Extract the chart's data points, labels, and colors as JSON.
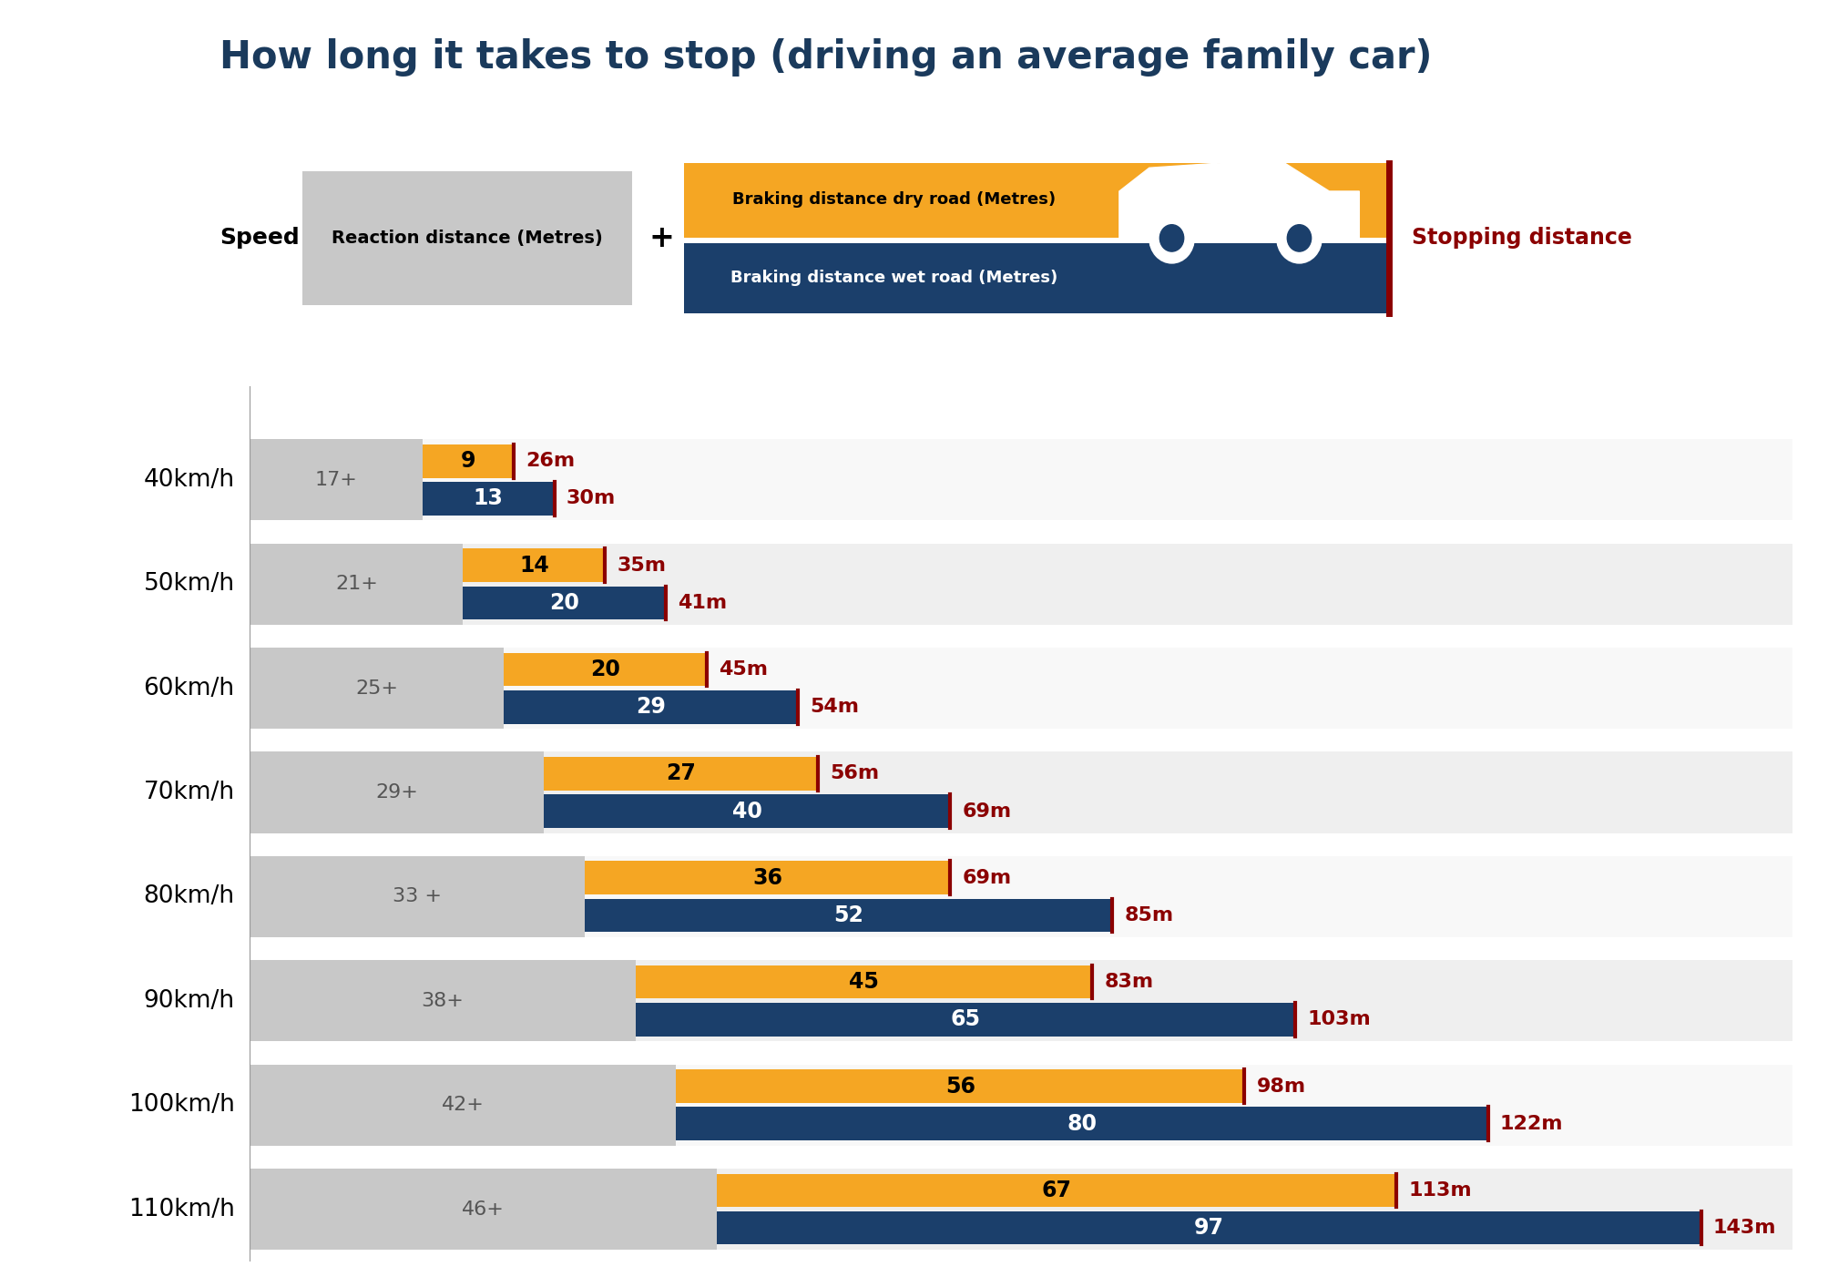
{
  "title": "How long it takes to stop (driving an average family car)",
  "title_color": "#1a3a5c",
  "title_fontsize": 30,
  "speeds": [
    "40km/h",
    "50km/h",
    "60km/h",
    "70km/h",
    "80km/h",
    "90km/h",
    "100km/h",
    "110km/h"
  ],
  "reaction_distances": [
    17,
    21,
    25,
    29,
    33,
    38,
    42,
    46
  ],
  "reaction_labels": [
    "17+",
    "21+",
    "25+",
    "29+",
    "33 +",
    "38+",
    "42+",
    "46+"
  ],
  "braking_dry": [
    9,
    14,
    20,
    27,
    36,
    45,
    56,
    67
  ],
  "braking_wet": [
    13,
    20,
    29,
    40,
    52,
    65,
    80,
    97
  ],
  "stopping_dry": [
    "26m",
    "35m",
    "45m",
    "56m",
    "69m",
    "83m",
    "98m",
    "113m"
  ],
  "stopping_wet": [
    "30m",
    "41m",
    "54m",
    "69m",
    "85m",
    "103m",
    "122m",
    "143m"
  ],
  "color_gray": "#c8c8c8",
  "color_orange": "#f5a623",
  "color_dark_blue": "#1b3f6b",
  "color_dark_red": "#8b0000",
  "color_white": "#ffffff",
  "legend_dry_label": "Braking distance dry road (Metres)",
  "legend_wet_label": "Braking distance wet road (Metres)",
  "legend_reaction_label": "Reaction distance (Metres)",
  "legend_stopping_label": "Stopping distance",
  "speed_label": "Speed"
}
